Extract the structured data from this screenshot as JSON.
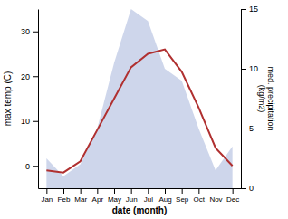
{
  "chart_data": {
    "type": "line",
    "categories": [
      "Jan",
      "Feb",
      "Mar",
      "Apr",
      "May",
      "Jun",
      "Jul",
      "Aug",
      "Sep",
      "Oct",
      "Nov",
      "Dec"
    ],
    "xlabel": "date (month)",
    "ylabel": "max temp (C)",
    "y2label": "med. precipitation\n(kg/m2)",
    "ylim": [
      -5,
      35
    ],
    "yticks": [
      0,
      10,
      20,
      30
    ],
    "y2lim": [
      0,
      15
    ],
    "y2ticks": [
      0,
      5,
      10,
      15
    ],
    "grid": false,
    "series": [
      {
        "type": "area",
        "axis": "y2",
        "color": "#c5cfe8",
        "values": [
          2.5,
          1.0,
          2.0,
          5.0,
          10.5,
          15.0,
          14.0,
          10.0,
          9.0,
          5.0,
          1.5,
          3.5
        ]
      },
      {
        "type": "line",
        "color": "#b03030",
        "values": [
          -1,
          -1.5,
          1,
          8,
          15,
          22,
          25,
          26,
          21,
          13,
          4,
          0
        ]
      }
    ]
  }
}
